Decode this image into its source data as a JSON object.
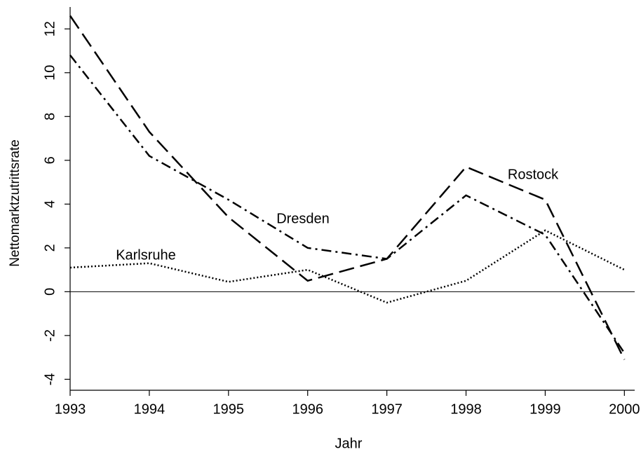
{
  "chart_data": {
    "type": "line",
    "x_label": "Jahr",
    "y_label": "Nettomarktzutrittsrate",
    "x": [
      1993,
      1994,
      1995,
      1996,
      1997,
      1998,
      1999,
      2000
    ],
    "series": [
      {
        "name": "Rostock",
        "color": "#000000",
        "linestyle": "dashed",
        "values": [
          12.6,
          7.3,
          3.4,
          0.5,
          1.5,
          5.7,
          4.2,
          -3.1
        ]
      },
      {
        "name": "Dresden",
        "color": "#000000",
        "linestyle": "dashdot",
        "values": [
          10.8,
          6.2,
          4.2,
          2.0,
          1.5,
          4.4,
          2.6,
          -2.8
        ]
      },
      {
        "name": "Karlsruhe",
        "color": "#000000",
        "linestyle": "dotted",
        "values": [
          1.1,
          1.3,
          0.45,
          1.0,
          -0.5,
          0.5,
          2.8,
          1.0
        ]
      }
    ],
    "xlim": [
      1993,
      2000.13
    ],
    "xticks": [
      1993,
      1994,
      1995,
      1996,
      1997,
      1998,
      1999,
      2000
    ],
    "ylim": [
      -4.5,
      13
    ],
    "yticks": [
      -4,
      -2,
      0,
      2,
      4,
      6,
      8,
      10,
      12
    ],
    "hlines": [
      0
    ],
    "grid": false
  }
}
